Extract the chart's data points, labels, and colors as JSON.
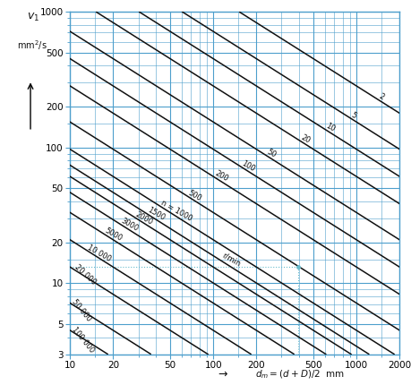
{
  "xlim": [
    10,
    2000
  ],
  "ylim": [
    3,
    1000
  ],
  "bg_color": "#ffffff",
  "grid_color": "#4d9fcc",
  "line_color": "#111111",
  "cyan_color": "#66bbcc",
  "n_lines": [
    2,
    5,
    10,
    20,
    50,
    100,
    200,
    500,
    1000,
    1500,
    2000,
    3000,
    5000,
    10000,
    20000,
    50000,
    100000
  ],
  "n_label_texts": [
    "2",
    "5",
    "10",
    "20",
    "50",
    "100",
    "200",
    "500",
    "n = 1000",
    "1500",
    "2000",
    "3000",
    "5000",
    "10 000",
    "20 000",
    "50 000",
    "100 000"
  ],
  "label_dm": [
    1400,
    900,
    600,
    400,
    230,
    155,
    100,
    65,
    42,
    34,
    28,
    22,
    17,
    13,
    10.5,
    10,
    10
  ],
  "example_x": 390,
  "example_y": 13.2,
  "formula_const": 45000.0,
  "formula_exp": 0.6667,
  "x_major": [
    10,
    20,
    50,
    100,
    200,
    500,
    1000,
    2000
  ],
  "y_major": [
    3,
    5,
    10,
    20,
    50,
    100,
    200,
    500,
    1000
  ],
  "x_minor": [
    15,
    30,
    40,
    60,
    70,
    80,
    90,
    150,
    300,
    400,
    600,
    700,
    800,
    900,
    1500
  ],
  "y_minor": [
    4,
    6,
    7,
    8,
    9,
    15,
    30,
    40,
    60,
    70,
    80,
    90,
    150,
    300,
    400,
    600,
    700,
    800,
    900
  ]
}
